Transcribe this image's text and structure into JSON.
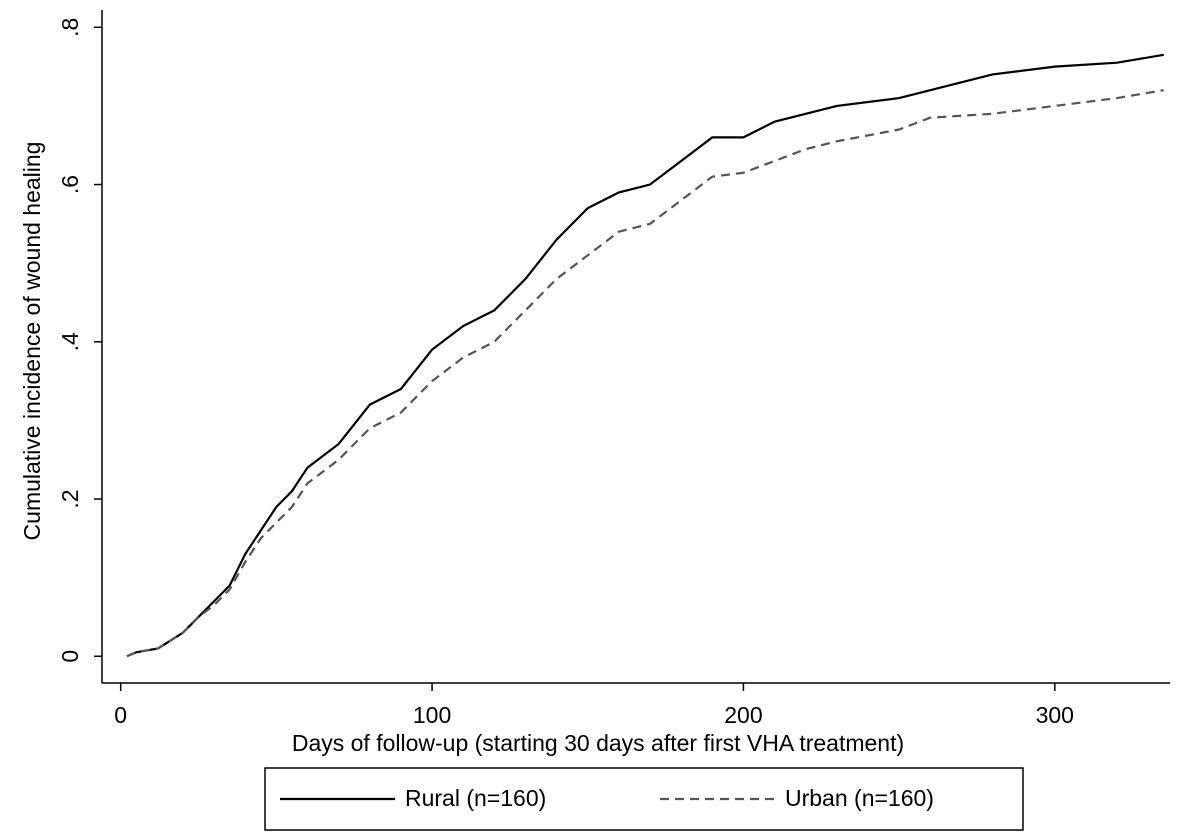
{
  "chart_data": {
    "type": "line",
    "x_label": "Days of follow-up (starting 30 days after first VHA treatment)",
    "y_label": "Cumulative incidence of wound healing",
    "x": [
      2,
      5,
      12,
      20,
      25,
      30,
      35,
      40,
      45,
      50,
      55,
      60,
      70,
      80,
      90,
      100,
      110,
      120,
      130,
      140,
      150,
      160,
      170,
      180,
      190,
      200,
      210,
      220,
      230,
      250,
      260,
      280,
      300,
      320,
      335
    ],
    "series": [
      {
        "name": "Rural (n=160)",
        "color": "#000000",
        "dash": "solid",
        "values": [
          0,
          0.005,
          0.01,
          0.03,
          0.05,
          0.07,
          0.09,
          0.13,
          0.16,
          0.19,
          0.21,
          0.24,
          0.27,
          0.32,
          0.34,
          0.39,
          0.42,
          0.44,
          0.48,
          0.53,
          0.57,
          0.59,
          0.6,
          0.63,
          0.66,
          0.66,
          0.68,
          0.69,
          0.7,
          0.71,
          0.72,
          0.74,
          0.75,
          0.755,
          0.765
        ]
      },
      {
        "name": "Urban (n=160)",
        "color": "#555555",
        "dash": "dashed",
        "values": [
          0,
          0.005,
          0.01,
          0.03,
          0.05,
          0.065,
          0.085,
          0.12,
          0.15,
          0.17,
          0.19,
          0.22,
          0.25,
          0.29,
          0.31,
          0.35,
          0.38,
          0.4,
          0.44,
          0.48,
          0.51,
          0.54,
          0.55,
          0.58,
          0.61,
          0.615,
          0.63,
          0.645,
          0.655,
          0.67,
          0.685,
          0.69,
          0.7,
          0.71,
          0.72
        ]
      }
    ],
    "xlim": [
      -6,
      337
    ],
    "xticks": [
      0,
      100,
      200,
      300
    ],
    "ylim": [
      -0.034,
      0.822
    ],
    "yticks": [
      0,
      {
        "value": 0.2,
        "label": ".2"
      },
      {
        "value": 0.4,
        "label": ".4"
      },
      {
        "value": 0.6,
        "label": ".6"
      },
      {
        "value": 0.8,
        "label": ".8"
      }
    ],
    "grid": false,
    "legend": "bottom"
  }
}
